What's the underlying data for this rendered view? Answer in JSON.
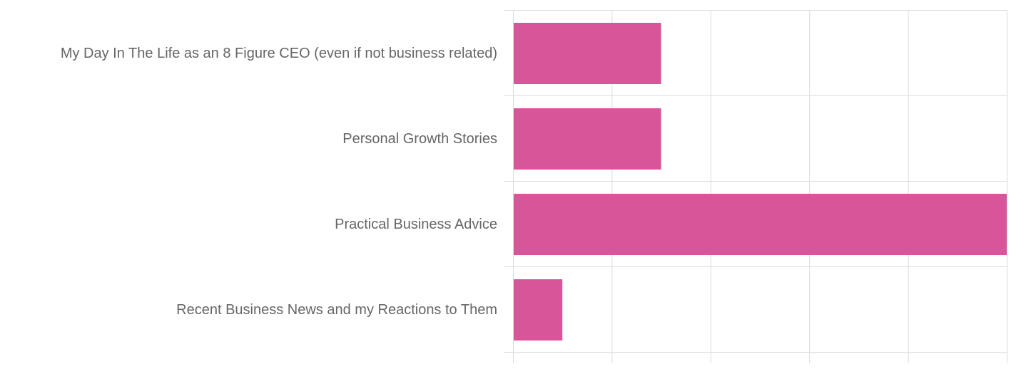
{
  "chart_data": {
    "type": "bar",
    "orientation": "horizontal",
    "categories": [
      "My Day In The Life as an 8 Figure CEO (even if not business related)",
      "Personal Growth Stories",
      "Practical Business Advice",
      "Recent Business News and my Reactions to Them"
    ],
    "values": [
      3,
      3,
      10,
      1
    ],
    "xlim": [
      0,
      10
    ],
    "grid": true,
    "bar_color": "#d9559a",
    "grid_color": "#dcdcdc",
    "label_color": "#666666"
  }
}
